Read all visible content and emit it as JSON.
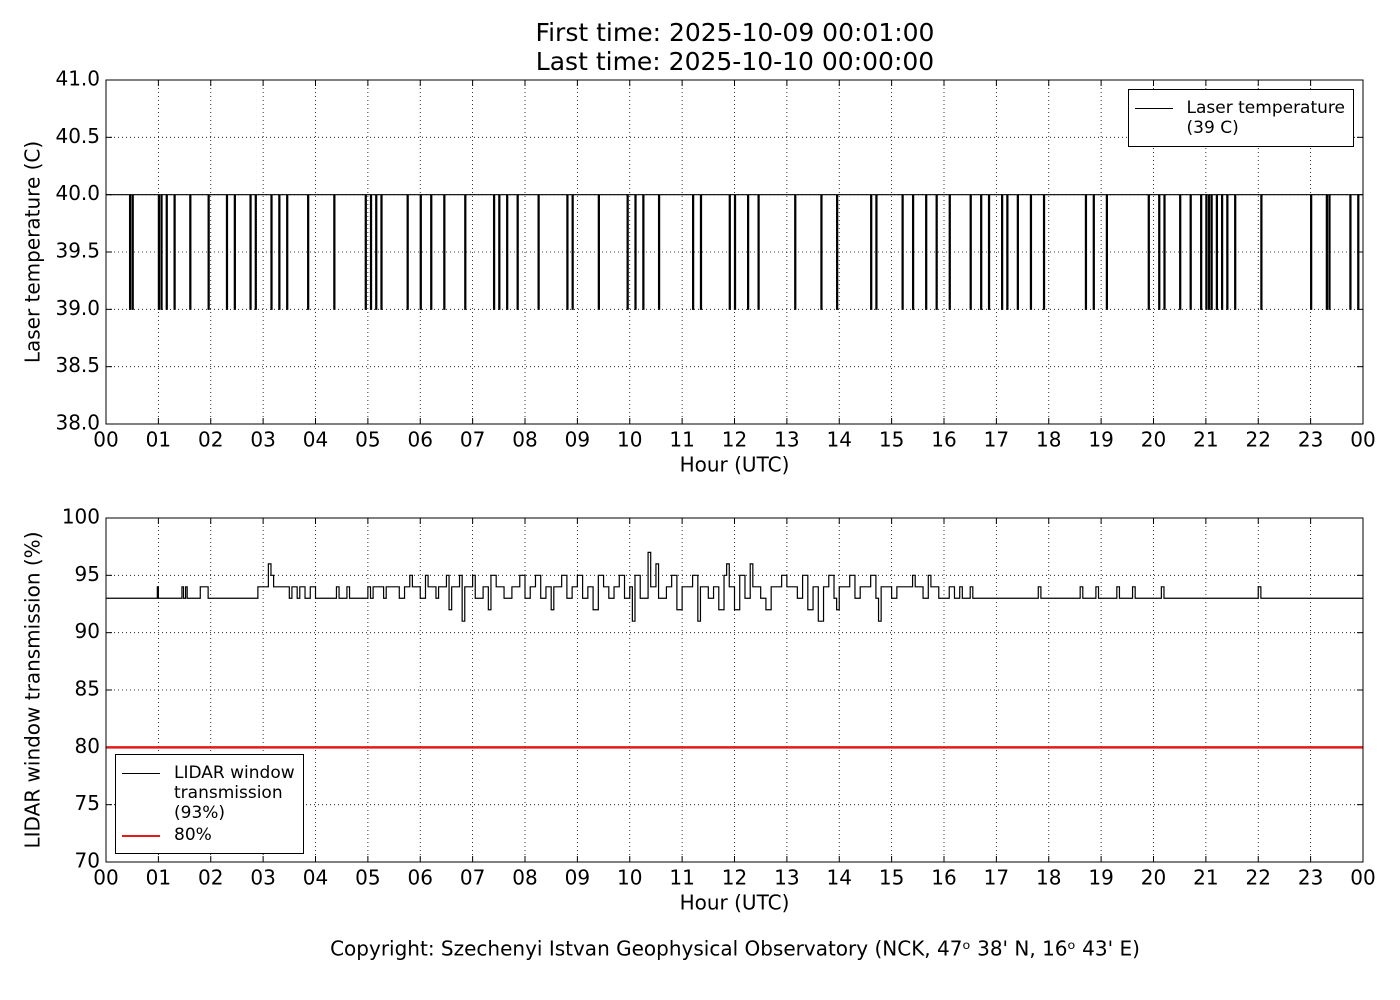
{
  "header": {
    "first_time": "First time: 2025-10-09 00:01:00",
    "last_time": "Last time: 2025-10-10 00:00:00"
  },
  "footer": {
    "copyright": "Copyright: Szechenyi Istvan Geophysical Observatory (NCK, 47ᵒ 38' N, 16ᵒ 43' E)"
  },
  "chart_data": [
    {
      "type": "line",
      "drawstyle": "steps-post",
      "grid": true,
      "legend_loc": "upper right",
      "xlabel": "Hour (UTC)",
      "ylabel": "Laser temperature (C)",
      "xlim": [
        0,
        24
      ],
      "xticks": [
        {
          "value": 0,
          "label": "00"
        },
        {
          "value": 1,
          "label": "01"
        },
        {
          "value": 2,
          "label": "02"
        },
        {
          "value": 3,
          "label": "03"
        },
        {
          "value": 4,
          "label": "04"
        },
        {
          "value": 5,
          "label": "05"
        },
        {
          "value": 6,
          "label": "06"
        },
        {
          "value": 7,
          "label": "07"
        },
        {
          "value": 8,
          "label": "08"
        },
        {
          "value": 9,
          "label": "09"
        },
        10,
        11,
        12,
        13,
        14,
        15,
        16,
        17,
        18,
        19,
        20,
        21,
        22,
        23,
        {
          "value": 24,
          "label": "00"
        }
      ],
      "ylim": [
        38,
        41
      ],
      "yticks": [
        {
          "value": 38,
          "label": "38.0"
        },
        38.5,
        {
          "value": 39,
          "label": "39.0"
        },
        39.5,
        {
          "value": 40,
          "label": "40.0"
        },
        40.5,
        {
          "value": 41,
          "label": "41.0"
        }
      ],
      "series": [
        {
          "name": "Laser temperature\n(39 C)",
          "color": "#000000",
          "x": [
            0,
            0.45,
            0.47,
            0.5,
            0.52,
            1.0,
            1.02,
            1.05,
            1.07,
            1.15,
            1.17,
            1.3,
            1.32,
            1.6,
            1.62,
            1.95,
            1.97,
            2.3,
            2.32,
            2.45,
            2.47,
            2.75,
            2.77,
            2.85,
            2.87,
            3.15,
            3.17,
            3.3,
            3.32,
            3.45,
            3.47,
            3.85,
            3.87,
            4.35,
            4.37,
            4.95,
            4.97,
            5.05,
            5.07,
            5.15,
            5.17,
            5.25,
            5.27,
            5.75,
            5.77,
            6.0,
            6.02,
            6.2,
            6.22,
            6.45,
            6.47,
            6.85,
            6.87,
            7.4,
            7.42,
            7.5,
            7.52,
            7.65,
            7.67,
            7.85,
            7.87,
            8.25,
            8.27,
            8.8,
            8.82,
            8.9,
            8.92,
            9.4,
            9.42,
            9.95,
            9.97,
            10.1,
            10.12,
            10.25,
            10.27,
            10.55,
            10.57,
            11.2,
            11.22,
            11.35,
            11.37,
            11.9,
            11.92,
            12.0,
            12.02,
            12.25,
            12.27,
            12.45,
            12.47,
            13.15,
            13.17,
            13.65,
            13.67,
            13.95,
            13.97,
            14.6,
            14.62,
            14.7,
            14.72,
            15.2,
            15.22,
            15.4,
            15.42,
            15.65,
            15.67,
            15.85,
            15.87,
            16.1,
            16.12,
            16.5,
            16.52,
            16.7,
            16.72,
            16.85,
            16.87,
            17.1,
            17.12,
            17.2,
            17.22,
            17.4,
            17.42,
            17.65,
            17.67,
            17.9,
            17.92,
            18.7,
            18.72,
            18.85,
            18.87,
            19.1,
            19.12,
            19.9,
            19.92,
            20.1,
            20.12,
            20.2,
            20.22,
            20.5,
            20.52,
            20.7,
            20.72,
            20.9,
            20.92,
            21.0,
            21.02,
            21.05,
            21.07,
            21.1,
            21.12,
            21.2,
            21.22,
            21.3,
            21.32,
            21.4,
            21.42,
            21.55,
            21.57,
            22.05,
            22.07,
            23.0,
            23.02,
            23.3,
            23.32,
            23.35,
            23.37,
            23.75,
            23.77,
            23.9,
            23.92,
            24
          ],
          "values": [
            40,
            39,
            40,
            39,
            40,
            39,
            40,
            39,
            40,
            39,
            40,
            39,
            40,
            39,
            40,
            39,
            40,
            39,
            40,
            39,
            40,
            39,
            40,
            39,
            40,
            39,
            40,
            39,
            40,
            39,
            40,
            39,
            40,
            39,
            40,
            39,
            40,
            39,
            40,
            39,
            40,
            39,
            40,
            39,
            40,
            39,
            40,
            39,
            40,
            39,
            40,
            39,
            40,
            39,
            40,
            39,
            40,
            39,
            40,
            39,
            40,
            39,
            40,
            39,
            40,
            39,
            40,
            39,
            40,
            39,
            40,
            39,
            40,
            39,
            40,
            39,
            40,
            39,
            40,
            39,
            40,
            39,
            40,
            39,
            40,
            39,
            40,
            39,
            40,
            39,
            40,
            39,
            40,
            39,
            40,
            39,
            40,
            39,
            40,
            39,
            40,
            39,
            40,
            39,
            40,
            39,
            40,
            39,
            40,
            39,
            40,
            39,
            40,
            39,
            40,
            39,
            40,
            39,
            40,
            39,
            40,
            39,
            40,
            39,
            40,
            39,
            40,
            39,
            40,
            39,
            40,
            39,
            40,
            39,
            40,
            39,
            40,
            39,
            40,
            39,
            40,
            39,
            40,
            39,
            40,
            39,
            40,
            39,
            40,
            39,
            40,
            39,
            40,
            39,
            40,
            39,
            40,
            39,
            40,
            39,
            40,
            39,
            40,
            39,
            40,
            39,
            40,
            39,
            40,
            40
          ]
        }
      ]
    },
    {
      "type": "line",
      "drawstyle": "steps-post",
      "grid": true,
      "legend_loc": "lower left",
      "xlabel": "Hour (UTC)",
      "ylabel": "LIDAR window transmission (%)",
      "xlim": [
        0,
        24
      ],
      "xticks": [
        {
          "value": 0,
          "label": "00"
        },
        {
          "value": 1,
          "label": "01"
        },
        {
          "value": 2,
          "label": "02"
        },
        {
          "value": 3,
          "label": "03"
        },
        {
          "value": 4,
          "label": "04"
        },
        {
          "value": 5,
          "label": "05"
        },
        {
          "value": 6,
          "label": "06"
        },
        {
          "value": 7,
          "label": "07"
        },
        {
          "value": 8,
          "label": "08"
        },
        {
          "value": 9,
          "label": "09"
        },
        10,
        11,
        12,
        13,
        14,
        15,
        16,
        17,
        18,
        19,
        20,
        21,
        22,
        23,
        {
          "value": 24,
          "label": "00"
        }
      ],
      "ylim": [
        70,
        100
      ],
      "yticks": [
        70,
        75,
        80,
        85,
        90,
        95,
        100
      ],
      "series": [
        {
          "name": "LIDAR window\ntransmission\n(93%)",
          "color": "#000000",
          "x": [
            0,
            0.98,
            1.0,
            1.45,
            1.48,
            1.52,
            1.55,
            1.8,
            1.95,
            2.9,
            3.1,
            3.15,
            3.2,
            3.5,
            3.55,
            3.65,
            3.7,
            3.8,
            3.9,
            4.0,
            4.4,
            4.45,
            4.6,
            4.65,
            5.0,
            5.05,
            5.1,
            5.3,
            5.35,
            5.6,
            5.7,
            5.8,
            5.85,
            6.0,
            6.1,
            6.15,
            6.3,
            6.35,
            6.5,
            6.55,
            6.6,
            6.75,
            6.8,
            6.85,
            7.0,
            7.05,
            7.2,
            7.3,
            7.35,
            7.45,
            7.6,
            7.75,
            7.9,
            8.0,
            8.1,
            8.2,
            8.3,
            8.4,
            8.5,
            8.55,
            8.7,
            8.8,
            8.9,
            9.0,
            9.1,
            9.2,
            9.3,
            9.4,
            9.5,
            9.6,
            9.7,
            9.8,
            9.9,
            10.0,
            10.05,
            10.1,
            10.2,
            10.35,
            10.4,
            10.5,
            10.55,
            10.7,
            10.8,
            10.9,
            11.0,
            11.2,
            11.3,
            11.35,
            11.5,
            11.6,
            11.7,
            11.8,
            11.85,
            11.9,
            12.0,
            12.1,
            12.2,
            12.3,
            12.35,
            12.5,
            12.6,
            12.7,
            12.9,
            13.0,
            13.2,
            13.3,
            13.4,
            13.5,
            13.6,
            13.7,
            13.8,
            13.9,
            13.95,
            14.0,
            14.2,
            14.3,
            14.4,
            14.6,
            14.7,
            14.75,
            14.8,
            15.0,
            15.1,
            15.4,
            15.45,
            15.6,
            15.7,
            15.75,
            15.9,
            16.1,
            16.2,
            16.3,
            16.35,
            16.5,
            16.55,
            17.8,
            17.85,
            18.6,
            18.65,
            18.9,
            18.95,
            19.3,
            19.35,
            19.6,
            19.65,
            20.15,
            20.2,
            22.0,
            22.05,
            24
          ],
          "values": [
            93,
            94,
            93,
            94,
            93,
            94,
            93,
            94,
            93,
            94,
            96,
            95,
            94,
            93,
            94,
            93,
            94,
            93,
            94,
            93,
            94,
            93,
            94,
            93,
            94,
            93,
            94,
            93,
            94,
            93,
            94,
            95,
            94,
            93,
            95,
            94,
            93,
            94,
            95,
            92,
            94,
            95,
            91,
            94,
            95,
            93,
            94,
            92,
            95,
            94,
            93,
            94,
            95,
            93,
            94,
            95,
            93,
            94,
            92,
            94,
            95,
            93,
            94,
            95,
            93,
            94,
            92,
            95,
            94,
            93,
            94,
            95,
            93,
            94,
            91,
            95,
            93,
            97,
            94,
            96,
            93,
            94,
            95,
            92,
            94,
            95,
            91,
            94,
            93,
            94,
            92,
            95,
            96,
            94,
            92,
            95,
            93,
            96,
            94,
            93,
            92,
            94,
            95,
            94,
            93,
            95,
            92,
            94,
            91,
            94,
            95,
            93,
            92,
            94,
            95,
            93,
            94,
            95,
            93,
            91,
            94,
            93,
            94,
            95,
            94,
            93,
            95,
            94,
            93,
            94,
            93,
            94,
            93,
            94,
            93,
            94,
            93,
            94,
            93,
            94,
            93,
            94,
            93,
            94,
            93,
            94,
            93,
            94,
            93,
            93
          ]
        },
        {
          "name": "80%",
          "color": "#e31a1c",
          "x": [
            0,
            24
          ],
          "values": [
            80,
            80
          ]
        }
      ]
    }
  ]
}
